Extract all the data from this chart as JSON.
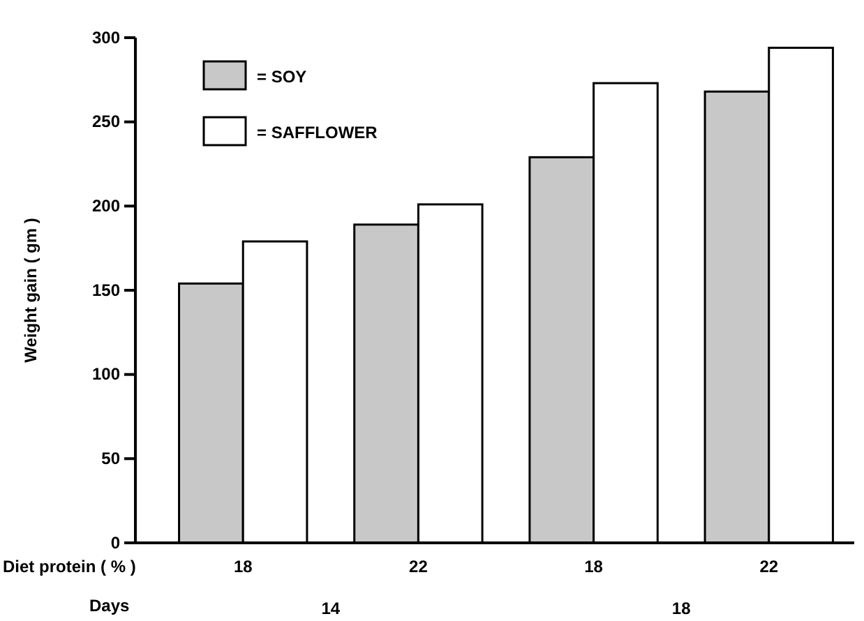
{
  "chart_data": {
    "type": "bar",
    "ylabel": "Weight gain ( gm )",
    "categories": [
      "18",
      "22",
      "18",
      "22"
    ],
    "series": [
      {
        "name": "= SOY",
        "color": "#c8c8c8",
        "values": [
          154,
          189,
          229,
          268
        ]
      },
      {
        "name": "= SAFFLOWER",
        "color": "#ffffff",
        "values": [
          179,
          201,
          273,
          294
        ]
      }
    ],
    "ylim": [
      0,
      300
    ],
    "yticks": [
      0,
      50,
      100,
      150,
      200,
      250,
      300
    ],
    "legend": "top left",
    "grid": false,
    "annotations": [
      "Diet protein ( % )",
      "Days",
      "14",
      "18"
    ]
  }
}
